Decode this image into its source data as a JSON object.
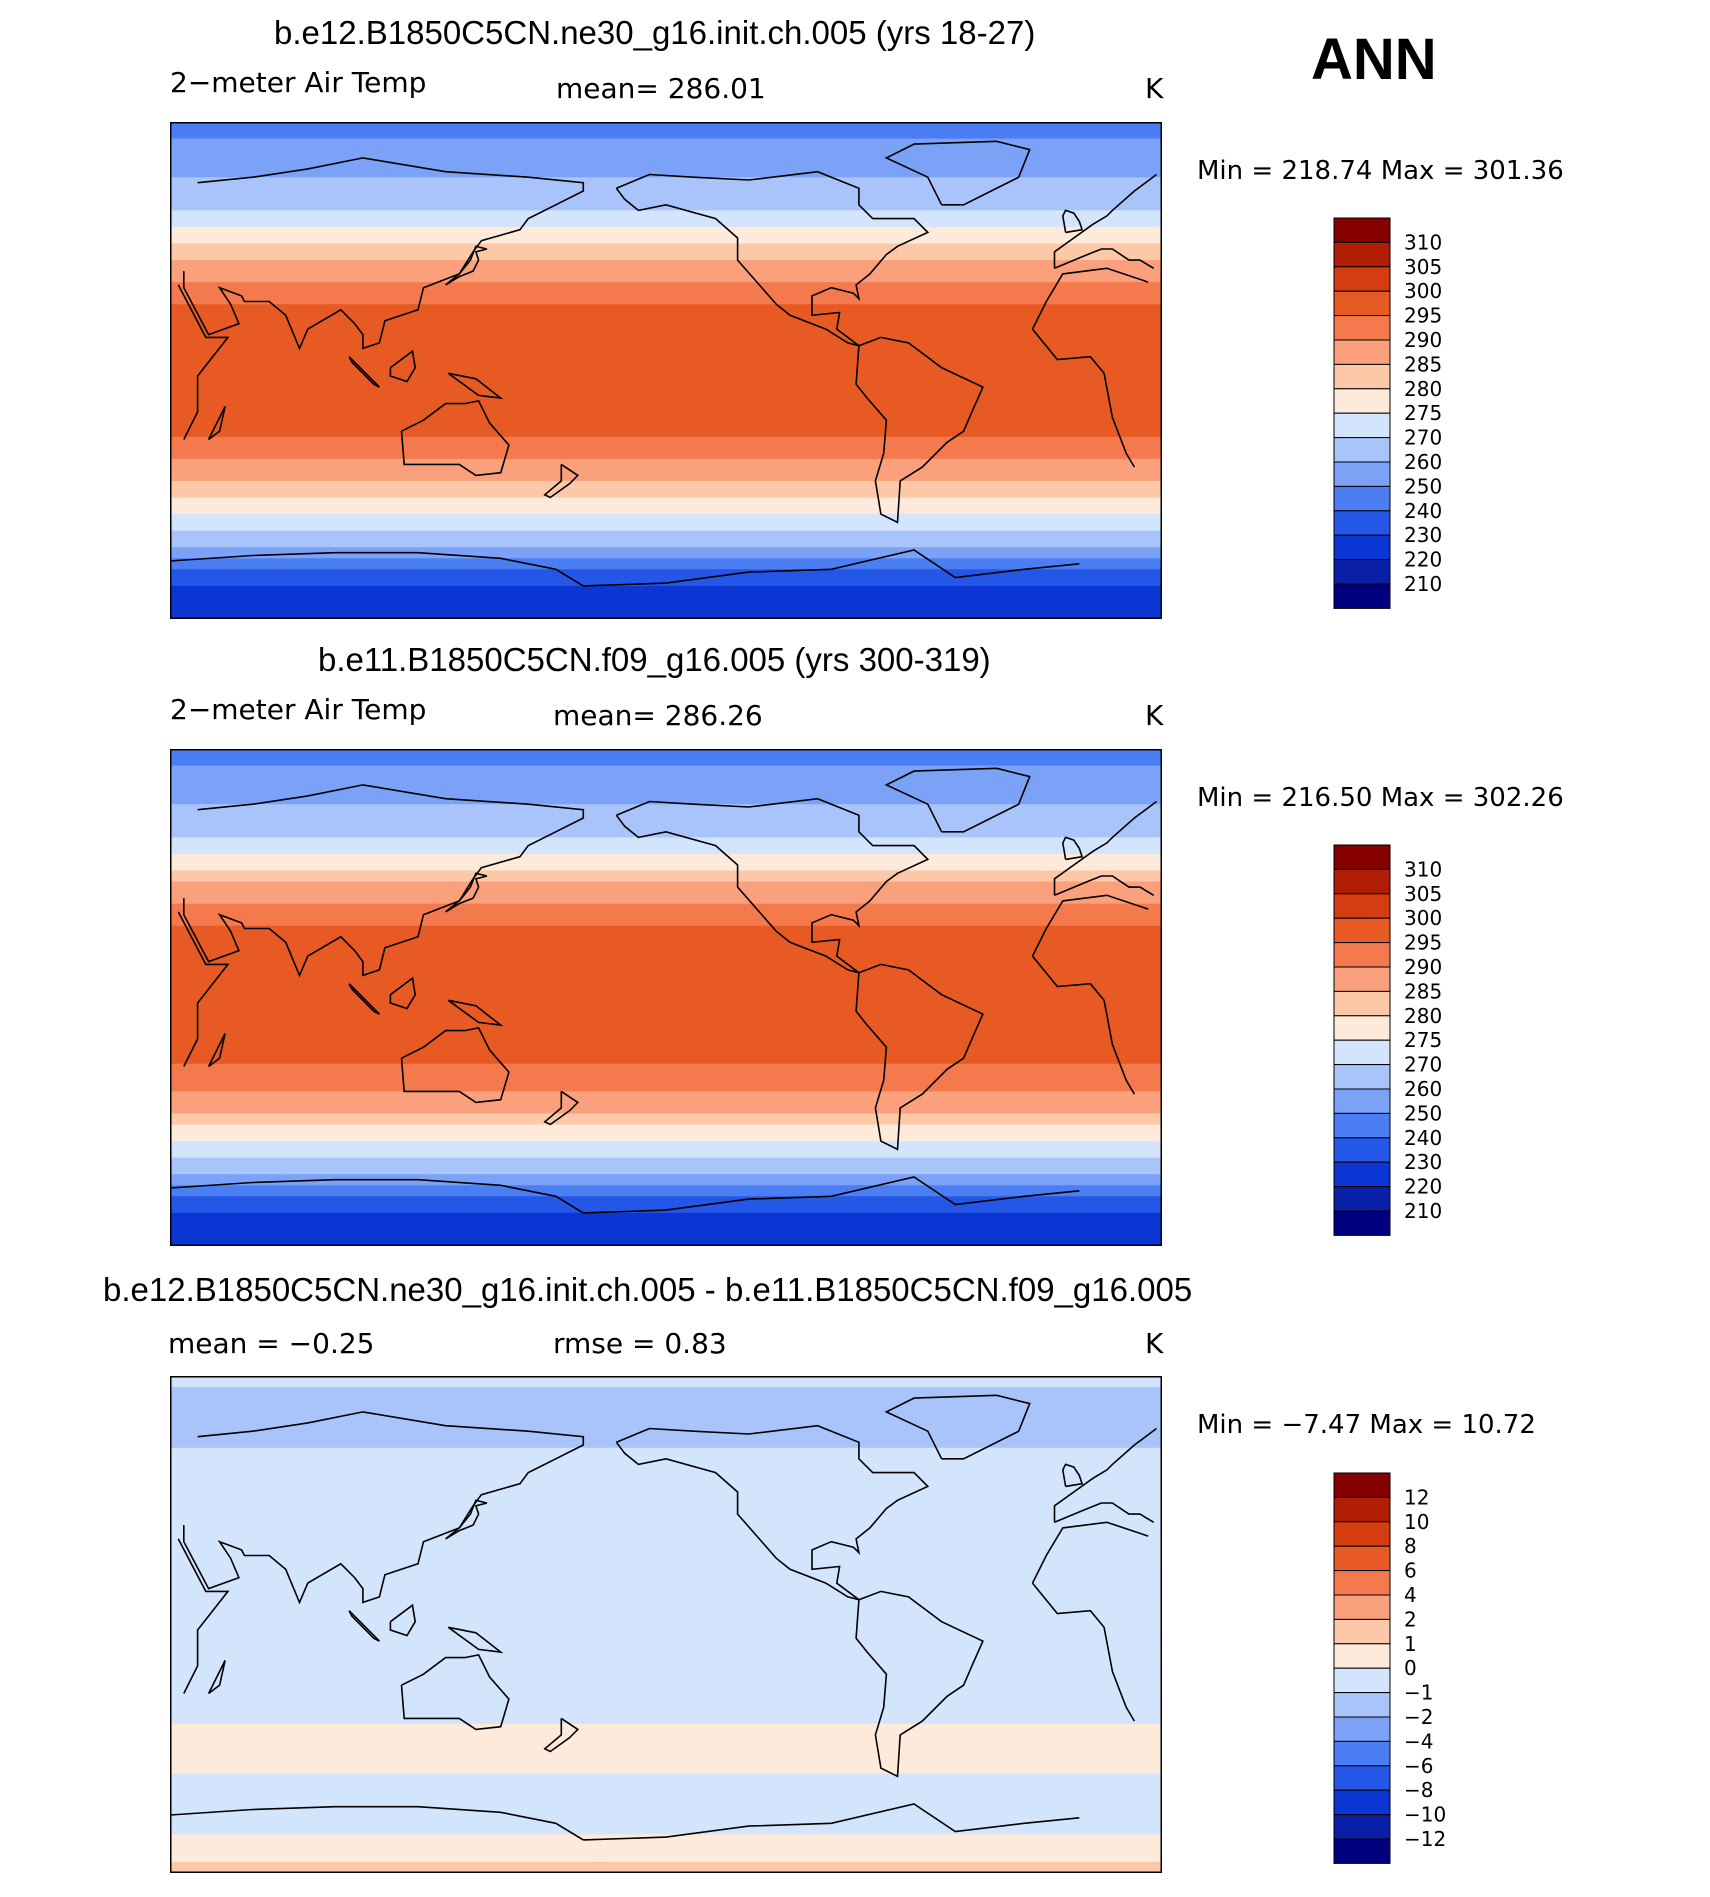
{
  "season": "ANN",
  "colors": {
    "temp": [
      "#00007f",
      "#0a1fa8",
      "#0c36d4",
      "#2456e8",
      "#4a7ef2",
      "#7ba2f7",
      "#a9c4fa",
      "#d3e4fd",
      "#fdeadb",
      "#fcc8a8",
      "#fba07c",
      "#f47a4e",
      "#e85a24",
      "#d53c10",
      "#b01e06",
      "#870000"
    ],
    "diff": [
      "#00007f",
      "#0a1fa8",
      "#0c36d4",
      "#2456e8",
      "#4a7ef2",
      "#7ba2f7",
      "#a9c4fa",
      "#d3e4fd",
      "#fdeadb",
      "#fcc8a8",
      "#fba07c",
      "#f47a4e",
      "#e85a24",
      "#d53c10",
      "#b01e06",
      "#870000"
    ]
  },
  "panels": [
    {
      "title": "b.e12.B1850C5CN.ne30_g16.init.ch.005 (yrs 18-27)",
      "left": "2−meter Air Temp",
      "center": "mean=  286.01",
      "units": "K",
      "minmax": "Min  =  218.74  Max  =  301.36"
    },
    {
      "title": "b.e11.B1850C5CN.f09_g16.005 (yrs 300-319)",
      "left": "2−meter Air Temp",
      "center": "mean=  286.26",
      "units": "K",
      "minmax": "Min  =  216.50  Max  =  302.26"
    },
    {
      "title": "b.e12.B1850C5CN.ne30_g16.init.ch.005 - b.e11.B1850C5CN.f09_g16.005",
      "left": "mean  =    −0.25",
      "center": "rmse  =      0.83",
      "units": "K",
      "minmax": "Min  =    −7.47  Max  =    10.72"
    }
  ],
  "chart_data": [
    {
      "type": "heatmap",
      "title": "b.e12.B1850C5CN.ne30_g16.init.ch.005 (yrs 18-27)",
      "variable": "2−meter Air Temp",
      "units": "K",
      "mean": 286.01,
      "min": 218.74,
      "max": 301.36,
      "colorbar_levels": [
        "310",
        "305",
        "300",
        "295",
        "290",
        "285",
        "280",
        "275",
        "270",
        "260",
        "250",
        "240",
        "230",
        "220",
        "210"
      ],
      "lat_profile": [
        [
          -90,
          224
        ],
        [
          -80,
          226
        ],
        [
          -70,
          246
        ],
        [
          -60,
          268
        ],
        [
          -50,
          276
        ],
        [
          -40,
          285
        ],
        [
          -30,
          292
        ],
        [
          -20,
          297
        ],
        [
          -10,
          299
        ],
        [
          0,
          300
        ],
        [
          10,
          300
        ],
        [
          20,
          297
        ],
        [
          30,
          292
        ],
        [
          40,
          285
        ],
        [
          50,
          276
        ],
        [
          60,
          268
        ],
        [
          70,
          260
        ],
        [
          80,
          252
        ],
        [
          90,
          248
        ]
      ]
    },
    {
      "type": "heatmap",
      "title": "b.e11.B1850C5CN.f09_g16.005 (yrs 300-319)",
      "variable": "2−meter Air Temp",
      "units": "K",
      "mean": 286.26,
      "min": 216.5,
      "max": 302.26,
      "colorbar_levels": [
        "310",
        "305",
        "300",
        "295",
        "290",
        "285",
        "280",
        "275",
        "270",
        "260",
        "250",
        "240",
        "230",
        "220",
        "210"
      ],
      "lat_profile": [
        [
          -90,
          222
        ],
        [
          -80,
          225
        ],
        [
          -70,
          245
        ],
        [
          -60,
          268
        ],
        [
          -50,
          277
        ],
        [
          -40,
          286
        ],
        [
          -30,
          293
        ],
        [
          -20,
          297
        ],
        [
          -10,
          299
        ],
        [
          0,
          300
        ],
        [
          10,
          300
        ],
        [
          20,
          298
        ],
        [
          30,
          293
        ],
        [
          40,
          286
        ],
        [
          50,
          277
        ],
        [
          60,
          268
        ],
        [
          70,
          260
        ],
        [
          80,
          252
        ],
        [
          90,
          248
        ]
      ]
    },
    {
      "type": "heatmap",
      "title": "b.e12.B1850C5CN.ne30_g16.init.ch.005 - b.e11.B1850C5CN.f09_g16.005",
      "units": "K",
      "mean": -0.25,
      "rmse": 0.83,
      "min": -7.47,
      "max": 10.72,
      "colorbar_levels": [
        "12",
        "10",
        "8",
        "6",
        "4",
        "2",
        "1",
        "0",
        "−1",
        "−2",
        "−4",
        "−6",
        "−8",
        "−10",
        "−12"
      ],
      "lat_profile": [
        [
          -90,
          1.5
        ],
        [
          -80,
          0.5
        ],
        [
          -70,
          -0.5
        ],
        [
          -60,
          -0.5
        ],
        [
          -50,
          0.5
        ],
        [
          -40,
          0.5
        ],
        [
          -30,
          -0.5
        ],
        [
          -20,
          -0.5
        ],
        [
          -10,
          -0.5
        ],
        [
          0,
          -0.5
        ],
        [
          10,
          -0.5
        ],
        [
          20,
          -0.5
        ],
        [
          30,
          -0.5
        ],
        [
          40,
          -0.5
        ],
        [
          50,
          -0.5
        ],
        [
          60,
          -0.5
        ],
        [
          70,
          -1.5
        ],
        [
          80,
          -1.5
        ],
        [
          90,
          -0.5
        ]
      ]
    }
  ]
}
